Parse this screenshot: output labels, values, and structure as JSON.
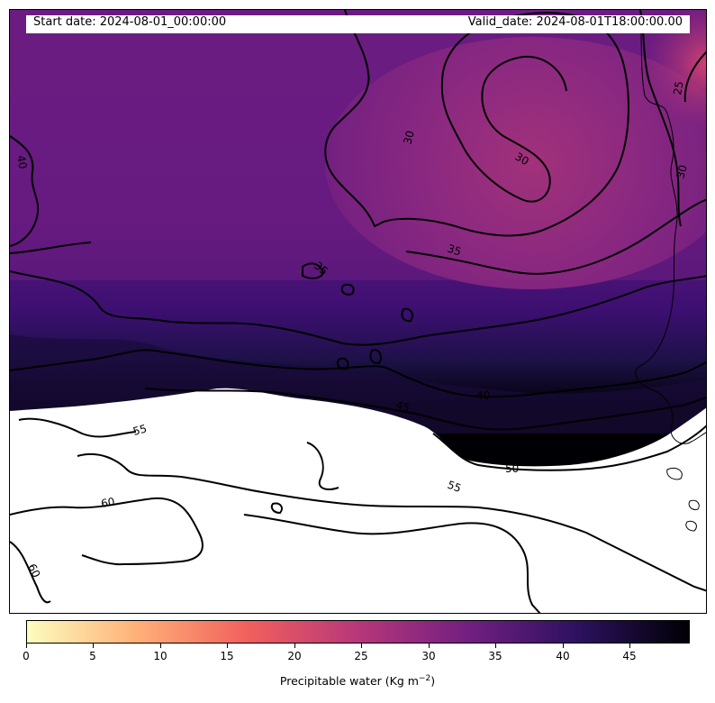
{
  "header": {
    "start_date": "Start date: 2024-08-01_00:00:00",
    "valid_date": "Valid_date: 2024-08-01T18:00:00.00"
  },
  "colorbar": {
    "label": "Precipitable water (Kg m",
    "label_sup": "−2",
    "label_end": ")",
    "min": 0,
    "max": 49.5,
    "ticks": [
      "0",
      "5",
      "10",
      "15",
      "20",
      "25",
      "30",
      "35",
      "40",
      "45"
    ],
    "colormap": "magma_r",
    "colors": [
      "#fcfdbf",
      "#feb078",
      "#f1605d",
      "#b73779",
      "#721f81",
      "#2c115f",
      "#000004"
    ]
  },
  "map": {
    "contour_levels": [
      "25",
      "30",
      "35",
      "40",
      "45",
      "50",
      "55",
      "60"
    ],
    "contour_color": "#000000",
    "masked_region_color": "#ffffff",
    "contour_labels": [
      "25",
      "30",
      "30",
      "30",
      "35",
      "35",
      "40",
      "40",
      "45",
      "50",
      "55",
      "55",
      "60",
      "60"
    ]
  }
}
